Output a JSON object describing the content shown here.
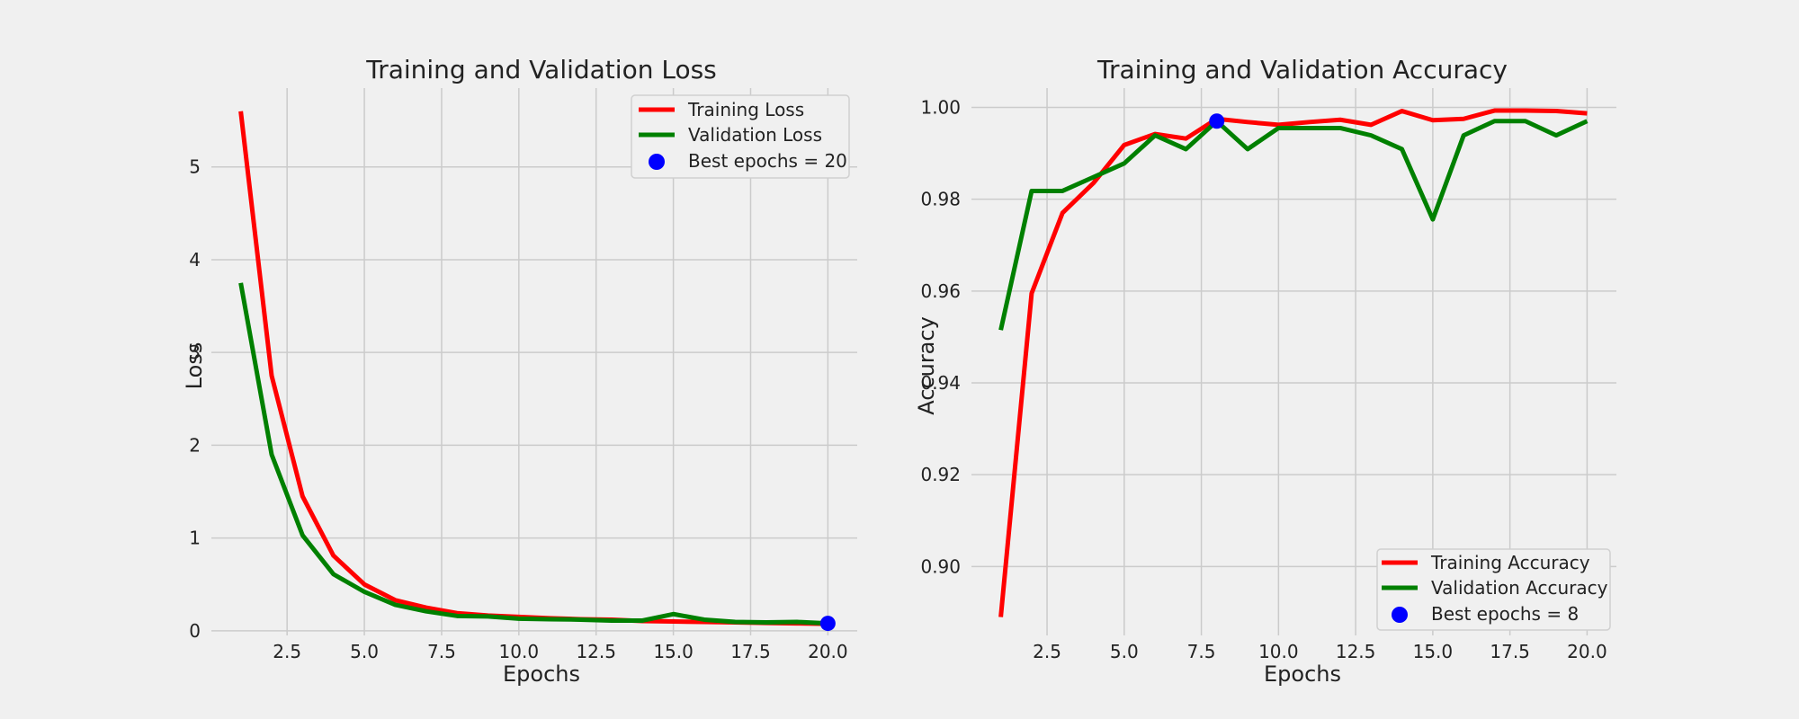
{
  "chart_data": [
    {
      "type": "line",
      "title": "Training and Validation Loss",
      "xlabel": "Epochs",
      "ylabel": "Loss",
      "xlim": [
        0.05,
        20.95
      ],
      "ylim": [
        -0.05,
        5.85
      ],
      "x_ticks": [
        2.5,
        5.0,
        7.5,
        10.0,
        12.5,
        15.0,
        17.5,
        20.0
      ],
      "x_tick_labels": [
        "2.5",
        "5.0",
        "7.5",
        "10.0",
        "12.5",
        "15.0",
        "17.5",
        "20.0"
      ],
      "y_ticks": [
        0,
        1,
        2,
        3,
        4,
        5
      ],
      "y_tick_labels": [
        "0",
        "1",
        "2",
        "3",
        "4",
        "5"
      ],
      "x": [
        1,
        2,
        3,
        4,
        5,
        6,
        7,
        8,
        9,
        10,
        11,
        12,
        13,
        14,
        15,
        16,
        17,
        18,
        19,
        20
      ],
      "series": [
        {
          "name": "Training Loss",
          "color": "#ff0000",
          "values": [
            5.6,
            2.75,
            1.45,
            0.81,
            0.5,
            0.33,
            0.25,
            0.19,
            0.165,
            0.15,
            0.135,
            0.125,
            0.12,
            0.105,
            0.1,
            0.095,
            0.09,
            0.085,
            0.08,
            0.075
          ]
        },
        {
          "name": "Validation Loss",
          "color": "#008000",
          "values": [
            3.75,
            1.9,
            1.03,
            0.61,
            0.42,
            0.28,
            0.21,
            0.16,
            0.155,
            0.13,
            0.125,
            0.12,
            0.11,
            0.11,
            0.18,
            0.12,
            0.095,
            0.09,
            0.095,
            0.08
          ]
        }
      ],
      "best": {
        "label": "Best epochs = 20",
        "x": 20,
        "y": 0.08,
        "color": "#0000ff"
      },
      "legend_position": "upper-right"
    },
    {
      "type": "line",
      "title": "Training and Validation Accuracy",
      "xlabel": "Epochs",
      "ylabel": "Accuracy",
      "xlim": [
        0.05,
        20.95
      ],
      "ylim": [
        0.885,
        1.0042
      ],
      "x_ticks": [
        2.5,
        5.0,
        7.5,
        10.0,
        12.5,
        15.0,
        17.5,
        20.0
      ],
      "x_tick_labels": [
        "2.5",
        "5.0",
        "7.5",
        "10.0",
        "12.5",
        "15.0",
        "17.5",
        "20.0"
      ],
      "y_ticks": [
        0.9,
        0.92,
        0.94,
        0.96,
        0.98,
        1.0
      ],
      "y_tick_labels": [
        "0.90",
        "0.92",
        "0.94",
        "0.96",
        "0.98",
        "1.00"
      ],
      "x": [
        1,
        2,
        3,
        4,
        5,
        6,
        7,
        8,
        9,
        10,
        11,
        12,
        13,
        14,
        15,
        16,
        17,
        18,
        19,
        20
      ],
      "series": [
        {
          "name": "Training Accuracy",
          "color": "#ff0000",
          "values": [
            0.889,
            0.9595,
            0.977,
            0.9835,
            0.9918,
            0.9942,
            0.9932,
            0.9975,
            0.9968,
            0.9962,
            0.9968,
            0.9973,
            0.9962,
            0.9992,
            0.9972,
            0.9975,
            0.9993,
            0.9993,
            0.9992,
            0.9987
          ]
        },
        {
          "name": "Validation Accuracy",
          "color": "#008000",
          "values": [
            0.9515,
            0.9818,
            0.9818,
            0.9848,
            0.9878,
            0.9939,
            0.9909,
            0.997,
            0.9909,
            0.9955,
            0.9955,
            0.9955,
            0.9939,
            0.9909,
            0.9756,
            0.9939,
            0.997,
            0.997,
            0.9939,
            0.997
          ]
        }
      ],
      "best": {
        "label": "Best epochs = 8",
        "x": 8,
        "y": 0.997,
        "color": "#0000ff"
      },
      "legend_position": "lower-right"
    }
  ]
}
